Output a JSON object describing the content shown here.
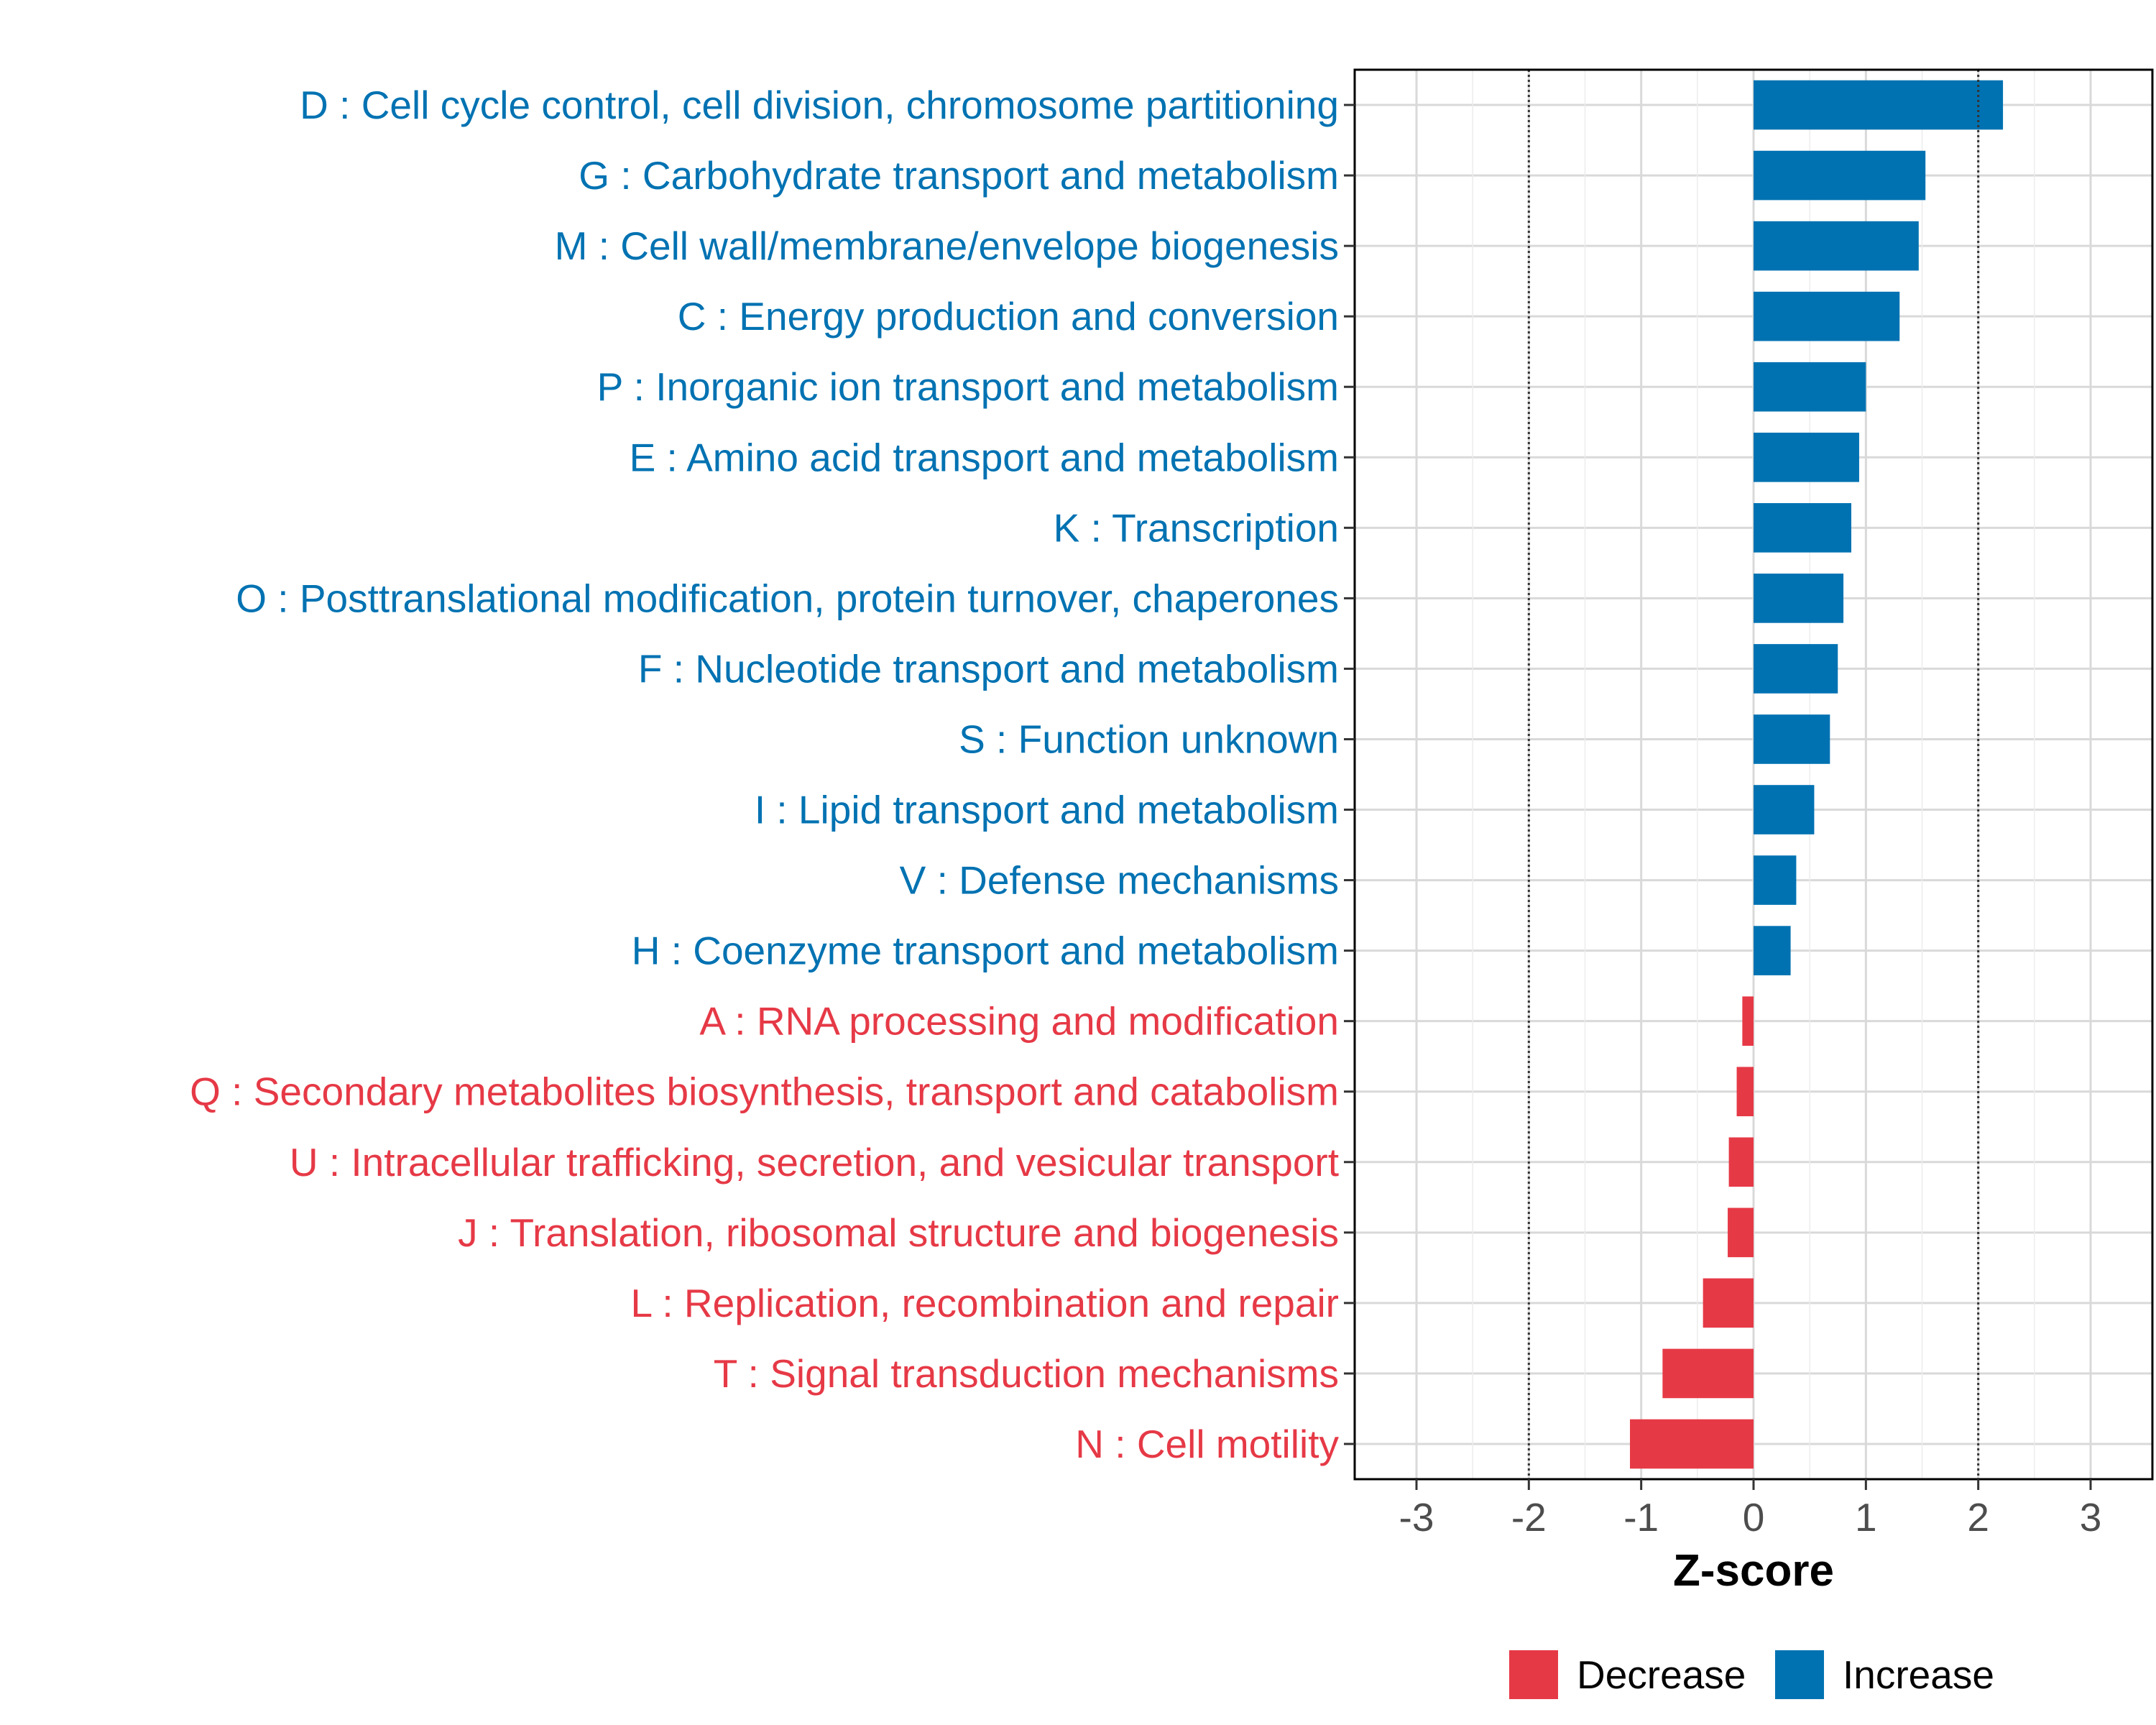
{
  "chart_data": {
    "type": "bar",
    "orientation": "horizontal",
    "title": "",
    "xlabel": "Z-score",
    "ylabel": "",
    "xlim": [
      -3.55,
      3.55
    ],
    "x_ticks": [
      -3,
      -2,
      -1,
      0,
      1,
      2,
      3
    ],
    "x_tick_labels": [
      "-3",
      "-2",
      "-1",
      "0",
      "1",
      "2",
      "3"
    ],
    "reference_lines": [
      -2,
      2
    ],
    "grid": true,
    "legend_position": "bottom",
    "colors": {
      "Increase": "#0072B2",
      "Decrease": "#E63946"
    },
    "legend": [
      {
        "name": "Decrease",
        "color": "#E63946"
      },
      {
        "name": "Increase",
        "color": "#0072B2"
      }
    ],
    "categories": [
      "D : Cell cycle control, cell division, chromosome partitioning",
      "G : Carbohydrate transport and metabolism",
      "M : Cell wall/membrane/envelope biogenesis",
      "C : Energy production and conversion",
      "P : Inorganic ion transport and metabolism",
      "E : Amino acid transport and metabolism",
      "K : Transcription",
      "O : Posttranslational modification, protein turnover, chaperones",
      "F : Nucleotide transport and metabolism",
      "S : Function unknown",
      "I : Lipid transport and metabolism",
      "V : Defense mechanisms",
      "H : Coenzyme transport and metabolism",
      "A : RNA processing and modification",
      "Q : Secondary metabolites biosynthesis, transport and catabolism",
      "U : Intracellular trafficking, secretion, and vesicular transport",
      "J : Translation, ribosomal structure and biogenesis",
      "L : Replication, recombination and repair",
      "T : Signal transduction mechanisms",
      "N : Cell motility"
    ],
    "values": [
      2.22,
      1.53,
      1.47,
      1.3,
      1.0,
      0.94,
      0.87,
      0.8,
      0.75,
      0.68,
      0.54,
      0.38,
      0.33,
      -0.1,
      -0.15,
      -0.22,
      -0.23,
      -0.45,
      -0.81,
      -1.1
    ],
    "groups": [
      "Increase",
      "Increase",
      "Increase",
      "Increase",
      "Increase",
      "Increase",
      "Increase",
      "Increase",
      "Increase",
      "Increase",
      "Increase",
      "Increase",
      "Increase",
      "Decrease",
      "Decrease",
      "Decrease",
      "Decrease",
      "Decrease",
      "Decrease",
      "Decrease"
    ]
  }
}
